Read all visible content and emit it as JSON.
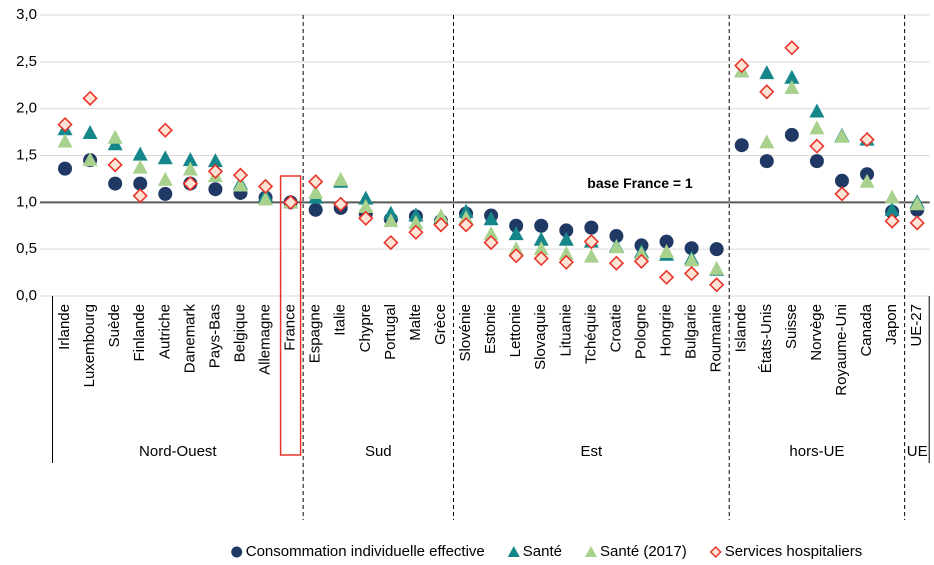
{
  "chart_data": {
    "type": "dot",
    "annotation": "base France = 1",
    "reference_value": 1,
    "highlight": "France",
    "categories": [
      "Irlande",
      "Luxembourg",
      "Suède",
      "Finlande",
      "Autriche",
      "Danemark",
      "Pays-Bas",
      "Belgique",
      "Allemagne",
      "France",
      "Espagne",
      "Italie",
      "Chypre",
      "Portugal",
      "Malte",
      "Grèce",
      "Slovénie",
      "Estonie",
      "Lettonie",
      "Slovaquie",
      "Lituanie",
      "Tchéquie",
      "Croatie",
      "Pologne",
      "Hongrie",
      "Bulgarie",
      "Roumanie",
      "Islande",
      "États-Unis",
      "Suisse",
      "Norvège",
      "Royaume-Uni",
      "Canada",
      "Japon",
      "UE-27"
    ],
    "groups": [
      {
        "name": "Nord-Ouest",
        "size": 10
      },
      {
        "name": "Sud",
        "size": 6
      },
      {
        "name": "Est",
        "size": 11
      },
      {
        "name": "hors-UE",
        "size": 7
      },
      {
        "name": "UE",
        "size": 1
      }
    ],
    "series": [
      {
        "name": "Consommation individuelle effective",
        "color": "#1f3864",
        "marker": "circle",
        "values": [
          1.36,
          1.45,
          1.2,
          1.2,
          1.09,
          1.2,
          1.14,
          1.1,
          1.05,
          1.0,
          0.92,
          0.94,
          0.88,
          0.82,
          0.85,
          0.8,
          0.88,
          0.86,
          0.75,
          0.75,
          0.7,
          0.73,
          0.64,
          0.54,
          0.58,
          0.51,
          0.5,
          1.61,
          1.44,
          1.72,
          1.44,
          1.23,
          1.3,
          0.9,
          0.92
        ]
      },
      {
        "name": "Santé",
        "color": "#15868a",
        "marker": "triangle",
        "values": [
          1.78,
          1.74,
          1.62,
          1.51,
          1.47,
          1.45,
          1.44,
          1.2,
          1.07,
          1.0,
          1.05,
          1.22,
          1.04,
          0.88,
          0.86,
          0.83,
          0.9,
          0.82,
          0.66,
          0.6,
          0.6,
          0.58,
          0.53,
          0.47,
          0.44,
          0.4,
          0.28,
          2.4,
          2.38,
          2.33,
          1.97,
          1.71,
          1.67,
          0.92,
          1.0
        ]
      },
      {
        "name": "Santé (2017)",
        "color": "#a9d18e",
        "marker": "triangle",
        "values": [
          1.65,
          1.45,
          1.69,
          1.37,
          1.24,
          1.35,
          1.28,
          1.18,
          1.03,
          1.0,
          1.1,
          1.24,
          0.95,
          0.8,
          0.78,
          0.85,
          0.83,
          0.66,
          0.5,
          0.5,
          0.45,
          0.42,
          0.52,
          0.45,
          0.47,
          0.38,
          0.29,
          2.4,
          1.64,
          2.22,
          1.79,
          1.7,
          1.22,
          1.05,
          0.98
        ]
      },
      {
        "name": "Services hospitaliers",
        "color": "#e8352b",
        "marker": "diamond",
        "values": [
          1.83,
          2.11,
          1.4,
          1.07,
          1.77,
          1.2,
          1.33,
          1.29,
          1.17,
          1.0,
          1.22,
          0.98,
          0.83,
          0.57,
          0.68,
          0.76,
          0.76,
          0.57,
          0.43,
          0.4,
          0.36,
          0.58,
          0.35,
          0.37,
          0.2,
          0.24,
          0.12,
          2.46,
          2.18,
          2.65,
          1.6,
          1.09,
          1.67,
          0.8,
          0.78
        ]
      }
    ],
    "ylim": [
      0,
      3
    ],
    "yticks": [
      {
        "value": 0,
        "label": "0,0"
      },
      {
        "value": 0.5,
        "label": "0,5"
      },
      {
        "value": 1,
        "label": "1,0"
      },
      {
        "value": 1.5,
        "label": "1,5"
      },
      {
        "value": 2,
        "label": "2,0"
      },
      {
        "value": 2.5,
        "label": "2,5"
      },
      {
        "value": 3,
        "label": "3,0"
      }
    ],
    "grid": true,
    "legend": "bottom"
  }
}
